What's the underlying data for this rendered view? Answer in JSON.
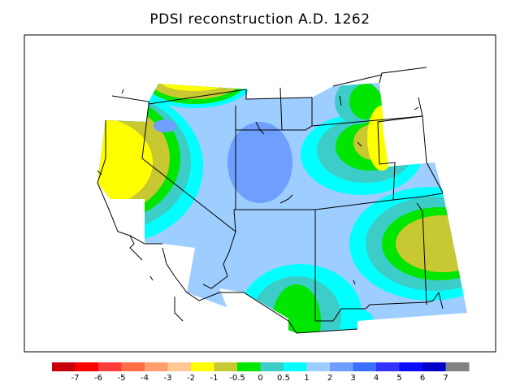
{
  "title": "PDSI reconstruction A.D. 1262",
  "legend": {
    "colors": [
      "#c8000a",
      "#ff0000",
      "#ff3c3c",
      "#ff6e46",
      "#ff9e6e",
      "#ffc896",
      "#ffff00",
      "#c8c832",
      "#00e600",
      "#3ccdc8",
      "#00ffff",
      "#9ecdff",
      "#6e9eff",
      "#3c6eff",
      "#3232ff",
      "#0a0aff",
      "#0000c8",
      "#828282"
    ],
    "tick_labels": [
      "-7",
      "-6",
      "-5",
      "-4",
      "-3",
      "-2",
      "-1",
      "-0.5",
      "0",
      "0.5",
      "1",
      "2",
      "3",
      "4",
      "5",
      "6",
      "7"
    ]
  },
  "region": "Western United States"
}
